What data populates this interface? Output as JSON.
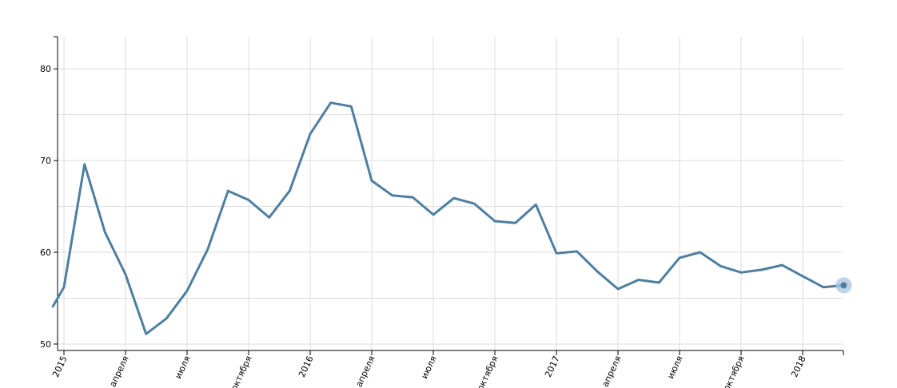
{
  "chart_data": {
    "type": "line",
    "title": "",
    "xlabel": "",
    "ylabel": "",
    "x_axis": {
      "start": "2015-01",
      "end": "2018-02",
      "ticks": [
        {
          "label": "2015",
          "date": "2015-01"
        },
        {
          "label": "апреля",
          "date": "2015-04"
        },
        {
          "label": "июля",
          "date": "2015-07"
        },
        {
          "label": "октября",
          "date": "2015-10"
        },
        {
          "label": "2016",
          "date": "2016-01"
        },
        {
          "label": "апреля",
          "date": "2016-04"
        },
        {
          "label": "июля",
          "date": "2016-07"
        },
        {
          "label": "октября",
          "date": "2016-10"
        },
        {
          "label": "2017",
          "date": "2017-01"
        },
        {
          "label": "апреля",
          "date": "2017-04"
        },
        {
          "label": "июля",
          "date": "2017-07"
        },
        {
          "label": "октября",
          "date": "2017-10"
        },
        {
          "label": "2018",
          "date": "2018-01"
        }
      ]
    },
    "y_axis": {
      "ylim": [
        49.3,
        83.5
      ],
      "ticks": [
        50,
        60,
        70,
        80
      ],
      "minor_grid": [
        55,
        65,
        75
      ]
    },
    "grid": true,
    "series": [
      {
        "color": "#4e7fa0",
        "highlight_color": "#a9c4e0",
        "points": [
          {
            "x": "2014-12-15",
            "y": 54.1
          },
          {
            "x": "2015-01-01",
            "y": 56.2
          },
          {
            "x": "2015-02-01",
            "y": 69.6
          },
          {
            "x": "2015-03-01",
            "y": 62.2
          },
          {
            "x": "2015-04-01",
            "y": 57.6
          },
          {
            "x": "2015-05-01",
            "y": 51.1
          },
          {
            "x": "2015-06-01",
            "y": 52.8
          },
          {
            "x": "2015-07-01",
            "y": 55.8
          },
          {
            "x": "2015-08-01",
            "y": 60.3
          },
          {
            "x": "2015-09-01",
            "y": 66.7
          },
          {
            "x": "2015-10-01",
            "y": 65.7
          },
          {
            "x": "2015-11-01",
            "y": 63.8
          },
          {
            "x": "2015-12-01",
            "y": 66.7
          },
          {
            "x": "2016-01-01",
            "y": 72.9
          },
          {
            "x": "2016-02-01",
            "y": 76.3
          },
          {
            "x": "2016-03-01",
            "y": 75.9
          },
          {
            "x": "2016-04-01",
            "y": 67.8
          },
          {
            "x": "2016-05-01",
            "y": 66.2
          },
          {
            "x": "2016-06-01",
            "y": 66.0
          },
          {
            "x": "2016-07-01",
            "y": 64.1
          },
          {
            "x": "2016-08-01",
            "y": 65.9
          },
          {
            "x": "2016-09-01",
            "y": 65.3
          },
          {
            "x": "2016-10-01",
            "y": 63.4
          },
          {
            "x": "2016-11-01",
            "y": 63.2
          },
          {
            "x": "2016-12-01",
            "y": 65.2
          },
          {
            "x": "2017-01-01",
            "y": 59.9
          },
          {
            "x": "2017-02-01",
            "y": 60.1
          },
          {
            "x": "2017-03-01",
            "y": 57.9
          },
          {
            "x": "2017-04-01",
            "y": 56.0
          },
          {
            "x": "2017-05-01",
            "y": 57.0
          },
          {
            "x": "2017-06-01",
            "y": 56.7
          },
          {
            "x": "2017-07-01",
            "y": 59.4
          },
          {
            "x": "2017-08-01",
            "y": 60.0
          },
          {
            "x": "2017-09-01",
            "y": 58.5
          },
          {
            "x": "2017-10-01",
            "y": 57.8
          },
          {
            "x": "2017-11-01",
            "y": 58.1
          },
          {
            "x": "2017-12-01",
            "y": 58.6
          },
          {
            "x": "2018-01-01",
            "y": 57.4
          },
          {
            "x": "2018-02-01",
            "y": 56.2
          },
          {
            "x": "2018-03-01",
            "y": 56.4
          }
        ]
      }
    ],
    "highlighted_point_index": 39
  }
}
